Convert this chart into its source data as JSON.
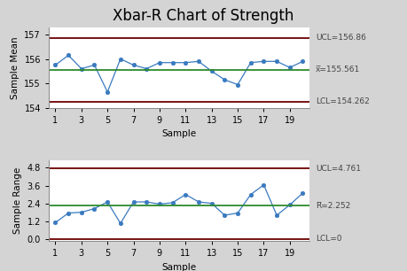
{
  "title": "Xbar-R Chart of Strength",
  "xbar_data": [
    155.75,
    156.15,
    155.6,
    155.75,
    154.65,
    156.0,
    155.75,
    155.6,
    155.85,
    155.85,
    155.85,
    155.9,
    155.5,
    155.15,
    154.95,
    155.85,
    155.9,
    155.9,
    155.65,
    155.9
  ],
  "range_data": [
    1.1,
    1.75,
    1.8,
    2.05,
    2.5,
    1.05,
    2.5,
    2.5,
    2.35,
    2.45,
    3.0,
    2.5,
    2.4,
    1.6,
    1.75,
    3.0,
    3.65,
    1.6,
    2.3,
    3.1
  ],
  "samples": [
    1,
    2,
    3,
    4,
    5,
    6,
    7,
    8,
    9,
    10,
    11,
    12,
    13,
    14,
    15,
    16,
    17,
    18,
    19,
    20
  ],
  "xbar_ucl": 156.86,
  "xbar_cl": 155.561,
  "xbar_lcl": 154.262,
  "range_ucl": 4.761,
  "range_cl": 2.252,
  "range_lcl": 0,
  "xbar_ylim": [
    154.0,
    157.3
  ],
  "xbar_yticks": [
    154,
    155,
    156,
    157
  ],
  "range_ylim": [
    -0.15,
    5.3
  ],
  "range_yticks": [
    0.0,
    1.2,
    2.4,
    3.6,
    4.8
  ],
  "bg_color": "#d4d4d4",
  "plot_bg_color": "#ffffff",
  "line_color": "#3a7abf",
  "marker_color": "#3a7abf",
  "cl_color": "#2d8a2d",
  "ucl_lcl_color": "#6b0000",
  "annotation_color": "#444444",
  "xlabel": "Sample",
  "ylabel_top": "Sample Mean",
  "ylabel_bottom": "Sample Range",
  "xtick_positions": [
    1,
    3,
    5,
    7,
    9,
    11,
    13,
    15,
    17,
    19
  ],
  "title_fontsize": 12,
  "label_fontsize": 7.5,
  "tick_fontsize": 7,
  "annot_fontsize": 6.5
}
